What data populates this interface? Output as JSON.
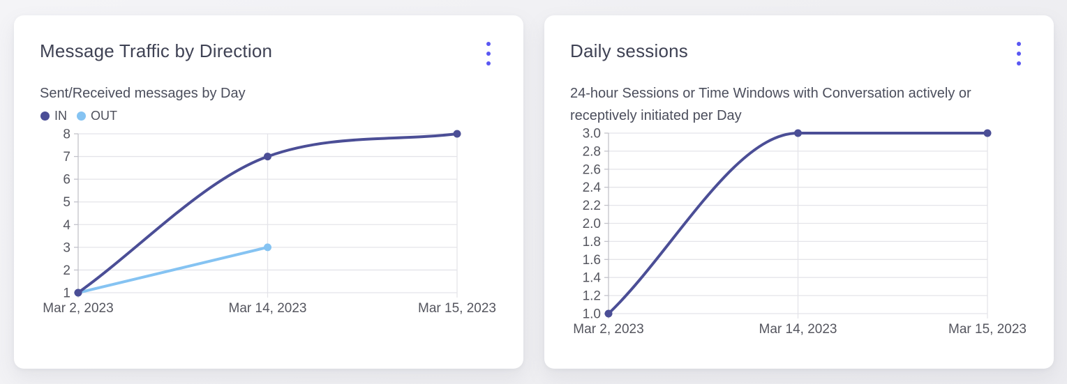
{
  "page": {
    "background": "#f1f1f4"
  },
  "colors": {
    "accent": "#5a57f2",
    "grid": "#e4e4e9",
    "axis": "#c2c2ca",
    "tick_text": "#54555e",
    "series_in": "#4b4e96",
    "series_out": "#85c3f2"
  },
  "chart_data": [
    {
      "type": "line",
      "title": "Message Traffic by Direction",
      "subtitle": "Sent/Received messages by Day",
      "categories": [
        "Mar 2, 2023",
        "Mar 14, 2023",
        "Mar 15, 2023"
      ],
      "series": [
        {
          "name": "IN",
          "color": "#4b4e96",
          "values": [
            1,
            7,
            8
          ]
        },
        {
          "name": "OUT",
          "color": "#85c3f2",
          "values": [
            1,
            3,
            null
          ]
        }
      ],
      "ylim": [
        1,
        8
      ],
      "ytick_labels": [
        "8",
        "7",
        "6",
        "5",
        "4",
        "3",
        "2",
        "1"
      ],
      "xlabel": "",
      "ylabel": "",
      "grid": true,
      "legend_position": "top-left",
      "curve": "monotone"
    },
    {
      "type": "line",
      "title": "Daily sessions",
      "subtitle": "24-hour Sessions or Time Windows with Conversation actively or receptively initiated per Day",
      "categories": [
        "Mar 2, 2023",
        "Mar 14, 2023",
        "Mar 15, 2023"
      ],
      "series": [
        {
          "name": "Daily sessions",
          "color": "#4b4e96",
          "values": [
            1.0,
            3.0,
            3.0
          ]
        }
      ],
      "ylim": [
        1.0,
        3.0
      ],
      "ytick_labels": [
        "3.0",
        "2.8",
        "2.6",
        "2.4",
        "2.2",
        "2.0",
        "1.8",
        "1.6",
        "1.4",
        "1.2",
        "1.0"
      ],
      "xlabel": "",
      "ylabel": "",
      "grid": true,
      "legend_position": "none",
      "curve": "monotone"
    }
  ]
}
